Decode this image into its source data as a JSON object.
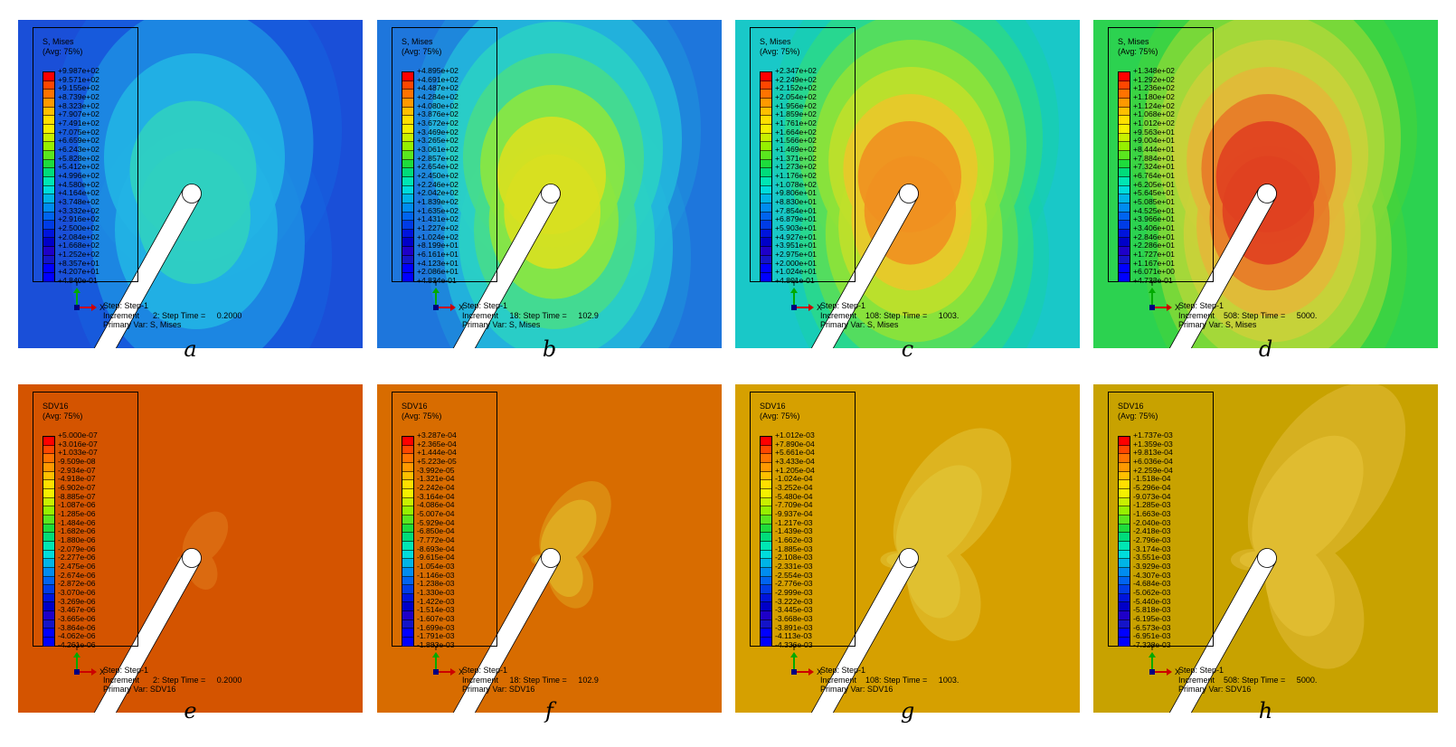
{
  "figure": {
    "captions": [
      "a",
      "b",
      "c",
      "d",
      "e",
      "f",
      "g",
      "h"
    ]
  },
  "colors": {
    "contour_scale": [
      "#ff0000",
      "#ff4600",
      "#ff7300",
      "#ff9900",
      "#ffbf00",
      "#ffdf00",
      "#f5f000",
      "#c8f000",
      "#96f000",
      "#5ae61e",
      "#1edc3c",
      "#00dc7a",
      "#00e6b4",
      "#00dcdc",
      "#00b4e6",
      "#008cf0",
      "#0064f0",
      "#003ce6",
      "#0014dc",
      "#0000c8",
      "#1e00c8",
      "#1414c8",
      "#0000ff",
      "#0000ff"
    ],
    "panel_backgrounds": [
      "#1a4fd8",
      "#1e76dc",
      "#19c8c8",
      "#2cd250",
      "#d45400",
      "#d86c00",
      "#d6a000",
      "#c8a200"
    ],
    "triad_y": "#00aa00",
    "triad_x": "#cc0000",
    "triad_origin": "#000080"
  },
  "panels": [
    {
      "field": "stress",
      "legend": {
        "title": "S, Mises",
        "avg": "(Avg: 75%)",
        "values": [
          "+9.987e+02",
          "+9.571e+02",
          "+9.155e+02",
          "+8.739e+02",
          "+8.323e+02",
          "+7.907e+02",
          "+7.491e+02",
          "+7.075e+02",
          "+6.659e+02",
          "+6.243e+02",
          "+5.828e+02",
          "+5.412e+02",
          "+4.996e+02",
          "+4.580e+02",
          "+4.164e+02",
          "+3.748e+02",
          "+3.332e+02",
          "+2.916e+02",
          "+2.500e+02",
          "+2.084e+02",
          "+1.668e+02",
          "+1.252e+02",
          "+8.357e+01",
          "+4.207e+01",
          "+4.840e-01"
        ]
      },
      "triad": {
        "y": "Y",
        "x": "X"
      },
      "info": {
        "step": "Step: Step-1",
        "increment": "Increment      2: Step Time =     0.2000",
        "primary": "Primary Var: S, Mises"
      }
    },
    {
      "field": "stress",
      "legend": {
        "title": "S, Mises",
        "avg": "(Avg: 75%)",
        "values": [
          "+4.895e+02",
          "+4.691e+02",
          "+4.487e+02",
          "+4.284e+02",
          "+4.080e+02",
          "+3.876e+02",
          "+3.672e+02",
          "+3.469e+02",
          "+3.265e+02",
          "+3.061e+02",
          "+2.857e+02",
          "+2.654e+02",
          "+2.450e+02",
          "+2.246e+02",
          "+2.042e+02",
          "+1.839e+02",
          "+1.635e+02",
          "+1.431e+02",
          "+1.227e+02",
          "+1.024e+02",
          "+8.199e+01",
          "+6.161e+01",
          "+4.123e+01",
          "+2.086e+01",
          "+4.834e-01"
        ]
      },
      "triad": {
        "y": "Y",
        "x": "X"
      },
      "info": {
        "step": "Step: Step-1",
        "increment": "Increment     18: Step Time =     102.9",
        "primary": "Primary Var: S, Mises"
      }
    },
    {
      "field": "stress",
      "legend": {
        "title": "S, Mises",
        "avg": "(Avg: 75%)",
        "values": [
          "+2.347e+02",
          "+2.249e+02",
          "+2.152e+02",
          "+2.054e+02",
          "+1.956e+02",
          "+1.859e+02",
          "+1.761e+02",
          "+1.664e+02",
          "+1.566e+02",
          "+1.469e+02",
          "+1.371e+02",
          "+1.273e+02",
          "+1.176e+02",
          "+1.078e+02",
          "+9.806e+01",
          "+8.830e+01",
          "+7.854e+01",
          "+6.879e+01",
          "+5.903e+01",
          "+4.927e+01",
          "+3.951e+01",
          "+2.975e+01",
          "+2.000e+01",
          "+1.024e+01",
          "+4.801e-01"
        ]
      },
      "triad": {
        "y": "Y",
        "x": "X"
      },
      "info": {
        "step": "Step: Step-1",
        "increment": "Increment    108: Step Time =     1003.",
        "primary": "Primary Var: S, Mises"
      }
    },
    {
      "field": "stress",
      "legend": {
        "title": "S, Mises",
        "avg": "(Avg: 75%)",
        "values": [
          "+1.348e+02",
          "+1.292e+02",
          "+1.236e+02",
          "+1.180e+02",
          "+1.124e+02",
          "+1.068e+02",
          "+1.012e+02",
          "+9.563e+01",
          "+9.004e+01",
          "+8.444e+01",
          "+7.884e+01",
          "+7.324e+01",
          "+6.764e+01",
          "+6.205e+01",
          "+5.645e+01",
          "+5.085e+01",
          "+4.525e+01",
          "+3.966e+01",
          "+3.406e+01",
          "+2.846e+01",
          "+2.286e+01",
          "+1.727e+01",
          "+1.167e+01",
          "+6.071e+00",
          "+4.733e-01"
        ]
      },
      "triad": {
        "y": "Y",
        "x": "X"
      },
      "info": {
        "step": "Step: Step-1",
        "increment": "Increment    508: Step Time =     5000.",
        "primary": "Primary Var: S, Mises"
      }
    },
    {
      "field": "sdv",
      "legend": {
        "title": "SDV16",
        "avg": "(Avg: 75%)",
        "values": [
          "+5.000e-07",
          "+3.016e-07",
          "+1.033e-07",
          "-9.509e-08",
          "-2.934e-07",
          "-4.918e-07",
          "-6.902e-07",
          "-8.885e-07",
          "-1.087e-06",
          "-1.285e-06",
          "-1.484e-06",
          "-1.682e-06",
          "-1.880e-06",
          "-2.079e-06",
          "-2.277e-06",
          "-2.475e-06",
          "-2.674e-06",
          "-2.872e-06",
          "-3.070e-06",
          "-3.269e-06",
          "-3.467e-06",
          "-3.665e-06",
          "-3.864e-06",
          "-4.062e-06",
          "-4.261e-06"
        ]
      },
      "triad": {
        "y": "Y",
        "x": "X"
      },
      "info": {
        "step": "Step: Step-1",
        "increment": "Increment      2: Step Time =     0.2000",
        "primary": "Primary Var: SDV16"
      }
    },
    {
      "field": "sdv",
      "legend": {
        "title": "SDV16",
        "avg": "(Avg: 75%)",
        "values": [
          "+3.287e-04",
          "+2.365e-04",
          "+1.444e-04",
          "+5.223e-05",
          "-3.992e-05",
          "-1.321e-04",
          "-2.242e-04",
          "-3.164e-04",
          "-4.086e-04",
          "-5.007e-04",
          "-5.929e-04",
          "-6.850e-04",
          "-7.772e-04",
          "-8.693e-04",
          "-9.615e-04",
          "-1.054e-03",
          "-1.146e-03",
          "-1.238e-03",
          "-1.330e-03",
          "-1.422e-03",
          "-1.514e-03",
          "-1.607e-03",
          "-1.699e-03",
          "-1.791e-03",
          "-1.883e-03"
        ]
      },
      "triad": {
        "y": "Y",
        "x": "X"
      },
      "info": {
        "step": "Step: Step-1",
        "increment": "Increment     18: Step Time =     102.9",
        "primary": "Primary Var: SDV16"
      }
    },
    {
      "field": "sdv",
      "legend": {
        "title": "SDV16",
        "avg": "(Avg: 75%)",
        "values": [
          "+1.012e-03",
          "+7.890e-04",
          "+5.661e-04",
          "+3.433e-04",
          "+1.205e-04",
          "-1.024e-04",
          "-3.252e-04",
          "-5.480e-04",
          "-7.709e-04",
          "-9.937e-04",
          "-1.217e-03",
          "-1.439e-03",
          "-1.662e-03",
          "-1.885e-03",
          "-2.108e-03",
          "-2.331e-03",
          "-2.554e-03",
          "-2.776e-03",
          "-2.999e-03",
          "-3.222e-03",
          "-3.445e-03",
          "-3.668e-03",
          "-3.891e-03",
          "-4.113e-03",
          "-4.336e-03"
        ]
      },
      "triad": {
        "y": "Y",
        "x": "X"
      },
      "info": {
        "step": "Step: Step-1",
        "increment": "Increment    108: Step Time =     1003.",
        "primary": "Primary Var: SDV16"
      }
    },
    {
      "field": "sdv",
      "legend": {
        "title": "SDV16",
        "avg": "(Avg: 75%)",
        "values": [
          "+1.737e-03",
          "+1.359e-03",
          "+9.813e-04",
          "+6.036e-04",
          "+2.259e-04",
          "-1.518e-04",
          "-5.296e-04",
          "-9.073e-04",
          "-1.285e-03",
          "-1.663e-03",
          "-2.040e-03",
          "-2.418e-03",
          "-2.796e-03",
          "-3.174e-03",
          "-3.551e-03",
          "-3.929e-03",
          "-4.307e-03",
          "-4.684e-03",
          "-5.062e-03",
          "-5.440e-03",
          "-5.818e-03",
          "-6.195e-03",
          "-6.573e-03",
          "-6.951e-03",
          "-7.328e-03"
        ]
      },
      "triad": {
        "y": "Y",
        "x": "X"
      },
      "info": {
        "step": "Step: Step-1",
        "increment": "Increment    508: Step Time =     5000.",
        "primary": "Primary Var: SDV16"
      }
    }
  ]
}
